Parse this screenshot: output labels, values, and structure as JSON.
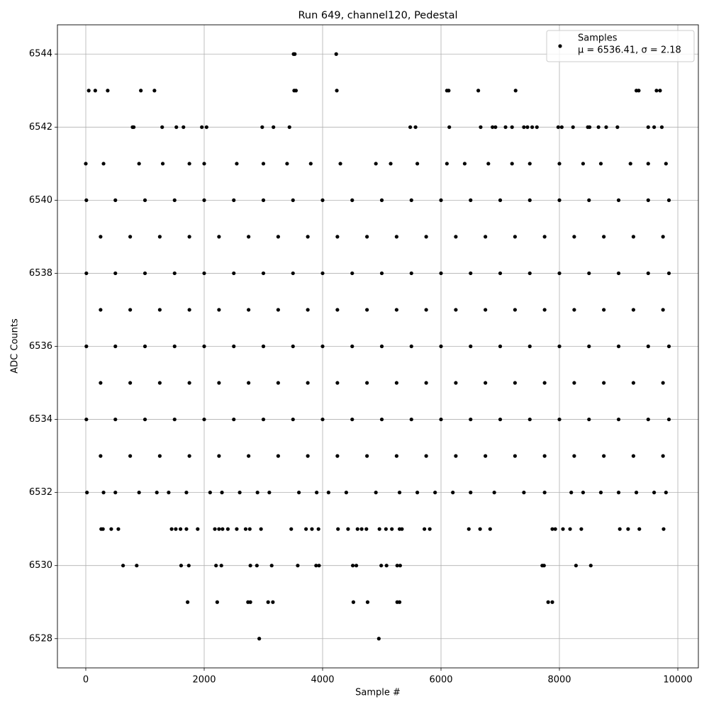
{
  "chart_data": {
    "type": "scatter",
    "title": "Run 649, channel120, Pedestal",
    "x_label": "Sample #",
    "y_label": "ADC Counts",
    "xlim": [
      -479,
      10347
    ],
    "ylim": [
      6527.2,
      6544.8
    ],
    "xticks": [
      0,
      2000,
      4000,
      6000,
      8000,
      10000
    ],
    "yticks": [
      6528,
      6530,
      6532,
      6534,
      6536,
      6538,
      6540,
      6542,
      6544
    ],
    "grid": true,
    "legend": "upper right",
    "legend_stats": "μ = 6536.41, σ = 2.18",
    "series": [
      {
        "name": "Samples",
        "color": "#000000",
        "x": [
          3510,
          3530,
          4230,
          50,
          160,
          370,
          930,
          1160,
          3520,
          3550,
          4240,
          6100,
          6130,
          6630,
          7260,
          9300,
          9340,
          9640,
          9700,
          790,
          810,
          1290,
          1530,
          1650,
          1960,
          2040,
          2980,
          3170,
          3440,
          5480,
          5570,
          6140,
          6670,
          6870,
          6920,
          7090,
          7200,
          7400,
          7460,
          7540,
          7620,
          7980,
          8040,
          8230,
          8480,
          8510,
          8660,
          8790,
          8980,
          9500,
          9600,
          9730,
          0,
          300,
          900,
          1300,
          1750,
          2000,
          2550,
          3000,
          3400,
          3800,
          4300,
          4900,
          5150,
          5600,
          6100,
          6400,
          6800,
          7200,
          7500,
          8000,
          8400,
          8700,
          9200,
          9500,
          9800,
          10,
          500,
          1000,
          1500,
          2000,
          2500,
          3000,
          3500,
          4000,
          4500,
          5000,
          5500,
          6000,
          6500,
          7000,
          7500,
          8000,
          8500,
          9000,
          9500,
          9850,
          250,
          750,
          1250,
          1750,
          2250,
          2750,
          3250,
          3750,
          4250,
          4750,
          5250,
          5750,
          6250,
          6750,
          7250,
          7750,
          8250,
          8750,
          9250,
          9750,
          10,
          500,
          1000,
          1500,
          2000,
          2500,
          3000,
          3500,
          4000,
          4500,
          5000,
          5500,
          6000,
          6500,
          7000,
          7500,
          8000,
          8500,
          9000,
          9500,
          9850,
          250,
          750,
          1250,
          1750,
          2250,
          2750,
          3250,
          3750,
          4250,
          4750,
          5250,
          5750,
          6250,
          6750,
          7250,
          7750,
          8250,
          8750,
          9250,
          9750,
          10,
          500,
          1000,
          1500,
          2000,
          2500,
          3000,
          3500,
          4000,
          4500,
          5000,
          5500,
          6000,
          6500,
          7000,
          7500,
          8000,
          8500,
          9000,
          9500,
          9850,
          250,
          750,
          1250,
          1750,
          2250,
          2750,
          3250,
          3750,
          4250,
          4750,
          5250,
          5750,
          6250,
          6750,
          7250,
          7750,
          8250,
          8750,
          9250,
          9750,
          10,
          500,
          1000,
          1500,
          2000,
          2500,
          3000,
          3500,
          4000,
          4500,
          5000,
          5500,
          6000,
          6500,
          7000,
          7500,
          8000,
          8500,
          9000,
          9500,
          9850,
          250,
          750,
          1250,
          1750,
          2250,
          2750,
          3250,
          3750,
          4250,
          4750,
          5250,
          5750,
          6250,
          6750,
          7250,
          7750,
          8250,
          8750,
          9250,
          9750,
          20,
          300,
          500,
          900,
          1200,
          1400,
          1700,
          2100,
          2300,
          2600,
          2900,
          3100,
          3600,
          3900,
          4100,
          4400,
          4900,
          5300,
          5600,
          5900,
          6200,
          6500,
          6900,
          7400,
          7750,
          8200,
          8400,
          8700,
          9000,
          9300,
          9600,
          9800,
          260,
          290,
          430,
          550,
          1450,
          1520,
          1600,
          1700,
          1890,
          2180,
          2250,
          2310,
          2400,
          2550,
          2700,
          2770,
          2960,
          3470,
          3720,
          3820,
          3930,
          4260,
          4430,
          4590,
          4660,
          4740,
          4960,
          5070,
          5170,
          5300,
          5340,
          5720,
          5810,
          6470,
          6660,
          6830,
          7880,
          7930,
          8060,
          8180,
          8370,
          9020,
          9160,
          9350,
          9760,
          630,
          860,
          1610,
          1740,
          2200,
          2290,
          2780,
          2890,
          3140,
          3580,
          3890,
          3940,
          4510,
          4570,
          4990,
          5080,
          5260,
          5310,
          7710,
          7740,
          8280,
          8530,
          1720,
          2220,
          2740,
          2780,
          3080,
          3160,
          4520,
          4760,
          5260,
          5300,
          7810,
          7880,
          2930,
          4950
        ],
        "values": [
          6544,
          6544,
          6544,
          6543,
          6543,
          6543,
          6543,
          6543,
          6543,
          6543,
          6543,
          6543,
          6543,
          6543,
          6543,
          6543,
          6543,
          6543,
          6543,
          6542,
          6542,
          6542,
          6542,
          6542,
          6542,
          6542,
          6542,
          6542,
          6542,
          6542,
          6542,
          6542,
          6542,
          6542,
          6542,
          6542,
          6542,
          6542,
          6542,
          6542,
          6542,
          6542,
          6542,
          6542,
          6542,
          6542,
          6542,
          6542,
          6542,
          6542,
          6542,
          6542,
          6541,
          6541,
          6541,
          6541,
          6541,
          6541,
          6541,
          6541,
          6541,
          6541,
          6541,
          6541,
          6541,
          6541,
          6541,
          6541,
          6541,
          6541,
          6541,
          6541,
          6541,
          6541,
          6541,
          6541,
          6541,
          6540,
          6540,
          6540,
          6540,
          6540,
          6540,
          6540,
          6540,
          6540,
          6540,
          6540,
          6540,
          6540,
          6540,
          6540,
          6540,
          6540,
          6540,
          6540,
          6540,
          6540,
          6539,
          6539,
          6539,
          6539,
          6539,
          6539,
          6539,
          6539,
          6539,
          6539,
          6539,
          6539,
          6539,
          6539,
          6539,
          6539,
          6539,
          6539,
          6539,
          6539,
          6538,
          6538,
          6538,
          6538,
          6538,
          6538,
          6538,
          6538,
          6538,
          6538,
          6538,
          6538,
          6538,
          6538,
          6538,
          6538,
          6538,
          6538,
          6538,
          6538,
          6538,
          6537,
          6537,
          6537,
          6537,
          6537,
          6537,
          6537,
          6537,
          6537,
          6537,
          6537,
          6537,
          6537,
          6537,
          6537,
          6537,
          6537,
          6537,
          6537,
          6537,
          6536,
          6536,
          6536,
          6536,
          6536,
          6536,
          6536,
          6536,
          6536,
          6536,
          6536,
          6536,
          6536,
          6536,
          6536,
          6536,
          6536,
          6536,
          6536,
          6536,
          6536,
          6535,
          6535,
          6535,
          6535,
          6535,
          6535,
          6535,
          6535,
          6535,
          6535,
          6535,
          6535,
          6535,
          6535,
          6535,
          6535,
          6535,
          6535,
          6535,
          6535,
          6534,
          6534,
          6534,
          6534,
          6534,
          6534,
          6534,
          6534,
          6534,
          6534,
          6534,
          6534,
          6534,
          6534,
          6534,
          6534,
          6534,
          6534,
          6534,
          6534,
          6534,
          6533,
          6533,
          6533,
          6533,
          6533,
          6533,
          6533,
          6533,
          6533,
          6533,
          6533,
          6533,
          6533,
          6533,
          6533,
          6533,
          6533,
          6533,
          6533,
          6533,
          6532,
          6532,
          6532,
          6532,
          6532,
          6532,
          6532,
          6532,
          6532,
          6532,
          6532,
          6532,
          6532,
          6532,
          6532,
          6532,
          6532,
          6532,
          6532,
          6532,
          6532,
          6532,
          6532,
          6532,
          6532,
          6532,
          6532,
          6532,
          6532,
          6532,
          6532,
          6532,
          6531,
          6531,
          6531,
          6531,
          6531,
          6531,
          6531,
          6531,
          6531,
          6531,
          6531,
          6531,
          6531,
          6531,
          6531,
          6531,
          6531,
          6531,
          6531,
          6531,
          6531,
          6531,
          6531,
          6531,
          6531,
          6531,
          6531,
          6531,
          6531,
          6531,
          6531,
          6531,
          6531,
          6531,
          6531,
          6531,
          6531,
          6531,
          6531,
          6531,
          6531,
          6531,
          6531,
          6531,
          6531,
          6530,
          6530,
          6530,
          6530,
          6530,
          6530,
          6530,
          6530,
          6530,
          6530,
          6530,
          6530,
          6530,
          6530,
          6530,
          6530,
          6530,
          6530,
          6530,
          6530,
          6530,
          6530,
          6529,
          6529,
          6529,
          6529,
          6529,
          6529,
          6529,
          6529,
          6529,
          6529,
          6529,
          6529,
          6528,
          6528
        ]
      }
    ]
  }
}
